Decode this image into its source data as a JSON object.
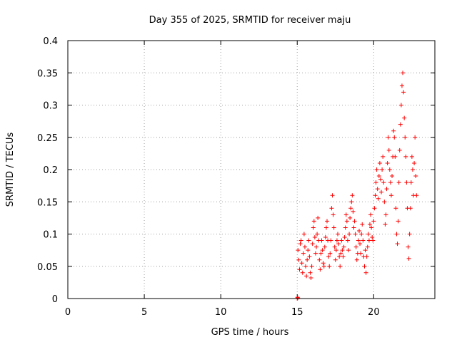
{
  "chart_data": {
    "type": "scatter",
    "title": "Day 355 of 2025, SRMTID for receiver maju",
    "xlabel": "GPS time / hours",
    "ylabel": "SRMTID / TECUs",
    "xlim": [
      0,
      24
    ],
    "ylim": [
      0,
      0.4
    ],
    "xticks": [
      0,
      5,
      10,
      15,
      20
    ],
    "xtick_labels": [
      "0",
      "5",
      "10",
      "15",
      "20"
    ],
    "yticks": [
      0,
      0.05,
      0.1,
      0.15,
      0.2,
      0.25,
      0.3,
      0.35,
      0.4
    ],
    "ytick_labels": [
      "0",
      "0.05",
      "0.1",
      "0.15",
      "0.2",
      "0.25",
      "0.3",
      "0.35",
      "0.4"
    ],
    "grid": true,
    "marker": "+",
    "marker_color": "#ff0000",
    "series": [
      {
        "name": "SRMTID",
        "points": [
          [
            15.0,
            0.0
          ],
          [
            15.02,
            0.002
          ],
          [
            15.04,
            0.001
          ],
          [
            15.05,
            0.075
          ],
          [
            15.1,
            0.06
          ],
          [
            15.15,
            0.045
          ],
          [
            15.2,
            0.085
          ],
          [
            15.25,
            0.09
          ],
          [
            15.3,
            0.055
          ],
          [
            15.35,
            0.04
          ],
          [
            15.4,
            0.07
          ],
          [
            15.45,
            0.1
          ],
          [
            15.5,
            0.08
          ],
          [
            15.55,
            0.05
          ],
          [
            15.6,
            0.035
          ],
          [
            15.65,
            0.06
          ],
          [
            15.7,
            0.075
          ],
          [
            15.75,
            0.09
          ],
          [
            15.8,
            0.065
          ],
          [
            15.85,
            0.04
          ],
          [
            15.9,
            0.032
          ],
          [
            15.95,
            0.05
          ],
          [
            16.0,
            0.085
          ],
          [
            16.05,
            0.11
          ],
          [
            16.1,
            0.12
          ],
          [
            16.15,
            0.095
          ],
          [
            16.2,
            0.07
          ],
          [
            16.25,
            0.08
          ],
          [
            16.3,
            0.1
          ],
          [
            16.35,
            0.125
          ],
          [
            16.4,
            0.09
          ],
          [
            16.45,
            0.06
          ],
          [
            16.5,
            0.045
          ],
          [
            16.55,
            0.07
          ],
          [
            16.6,
            0.09
          ],
          [
            16.65,
            0.075
          ],
          [
            16.7,
            0.055
          ],
          [
            16.75,
            0.05
          ],
          [
            16.8,
            0.08
          ],
          [
            16.85,
            0.095
          ],
          [
            16.9,
            0.11
          ],
          [
            16.95,
            0.12
          ],
          [
            17.0,
            0.09
          ],
          [
            17.05,
            0.065
          ],
          [
            17.1,
            0.05
          ],
          [
            17.15,
            0.07
          ],
          [
            17.2,
            0.09
          ],
          [
            17.25,
            0.14
          ],
          [
            17.3,
            0.16
          ],
          [
            17.35,
            0.13
          ],
          [
            17.4,
            0.11
          ],
          [
            17.45,
            0.08
          ],
          [
            17.5,
            0.06
          ],
          [
            17.55,
            0.075
          ],
          [
            17.6,
            0.09
          ],
          [
            17.65,
            0.1
          ],
          [
            17.7,
            0.085
          ],
          [
            17.75,
            0.065
          ],
          [
            17.8,
            0.05
          ],
          [
            17.85,
            0.07
          ],
          [
            17.9,
            0.09
          ],
          [
            17.95,
            0.075
          ],
          [
            18.0,
            0.065
          ],
          [
            18.05,
            0.08
          ],
          [
            18.1,
            0.095
          ],
          [
            18.15,
            0.11
          ],
          [
            18.2,
            0.13
          ],
          [
            18.25,
            0.12
          ],
          [
            18.3,
            0.09
          ],
          [
            18.35,
            0.075
          ],
          [
            18.4,
            0.1
          ],
          [
            18.45,
            0.125
          ],
          [
            18.5,
            0.14
          ],
          [
            18.55,
            0.15
          ],
          [
            18.6,
            0.16
          ],
          [
            18.65,
            0.135
          ],
          [
            18.7,
            0.11
          ],
          [
            18.75,
            0.12
          ],
          [
            18.8,
            0.1
          ],
          [
            18.85,
            0.08
          ],
          [
            18.9,
            0.06
          ],
          [
            18.95,
            0.07
          ],
          [
            19.0,
            0.09
          ],
          [
            19.05,
            0.105
          ],
          [
            19.1,
            0.085
          ],
          [
            19.15,
            0.07
          ],
          [
            19.2,
            0.1
          ],
          [
            19.25,
            0.115
          ],
          [
            19.3,
            0.09
          ],
          [
            19.35,
            0.065
          ],
          [
            19.4,
            0.05
          ],
          [
            19.45,
            0.075
          ],
          [
            19.5,
            0.04
          ],
          [
            19.55,
            0.065
          ],
          [
            19.6,
            0.08
          ],
          [
            19.65,
            0.1
          ],
          [
            19.7,
            0.09
          ],
          [
            19.75,
            0.115
          ],
          [
            19.8,
            0.13
          ],
          [
            19.85,
            0.11
          ],
          [
            19.9,
            0.095
          ],
          [
            19.95,
            0.09
          ],
          [
            20.0,
            0.12
          ],
          [
            20.05,
            0.14
          ],
          [
            20.1,
            0.16
          ],
          [
            20.15,
            0.18
          ],
          [
            20.2,
            0.2
          ],
          [
            20.25,
            0.17
          ],
          [
            20.3,
            0.155
          ],
          [
            20.35,
            0.19
          ],
          [
            20.4,
            0.21
          ],
          [
            20.45,
            0.185
          ],
          [
            20.5,
            0.165
          ],
          [
            20.55,
            0.2
          ],
          [
            20.6,
            0.22
          ],
          [
            20.65,
            0.18
          ],
          [
            20.7,
            0.15
          ],
          [
            20.75,
            0.115
          ],
          [
            20.8,
            0.13
          ],
          [
            20.85,
            0.17
          ],
          [
            20.9,
            0.21
          ],
          [
            20.95,
            0.25
          ],
          [
            21.0,
            0.23
          ],
          [
            21.05,
            0.2
          ],
          [
            21.1,
            0.18
          ],
          [
            21.15,
            0.16
          ],
          [
            21.2,
            0.19
          ],
          [
            21.25,
            0.22
          ],
          [
            21.3,
            0.26
          ],
          [
            21.35,
            0.25
          ],
          [
            21.4,
            0.22
          ],
          [
            21.45,
            0.14
          ],
          [
            21.5,
            0.1
          ],
          [
            21.55,
            0.085
          ],
          [
            21.6,
            0.12
          ],
          [
            21.65,
            0.18
          ],
          [
            21.7,
            0.23
          ],
          [
            21.75,
            0.27
          ],
          [
            21.8,
            0.3
          ],
          [
            21.85,
            0.33
          ],
          [
            21.9,
            0.35
          ],
          [
            21.95,
            0.32
          ],
          [
            22.0,
            0.28
          ],
          [
            22.05,
            0.25
          ],
          [
            22.1,
            0.22
          ],
          [
            22.15,
            0.18
          ],
          [
            22.2,
            0.14
          ],
          [
            22.25,
            0.08
          ],
          [
            22.3,
            0.062
          ],
          [
            22.35,
            0.1
          ],
          [
            22.4,
            0.14
          ],
          [
            22.45,
            0.18
          ],
          [
            22.5,
            0.22
          ],
          [
            22.55,
            0.2
          ],
          [
            22.6,
            0.16
          ],
          [
            22.65,
            0.21
          ],
          [
            22.7,
            0.25
          ],
          [
            22.75,
            0.19
          ],
          [
            22.8,
            0.16
          ]
        ]
      }
    ]
  }
}
